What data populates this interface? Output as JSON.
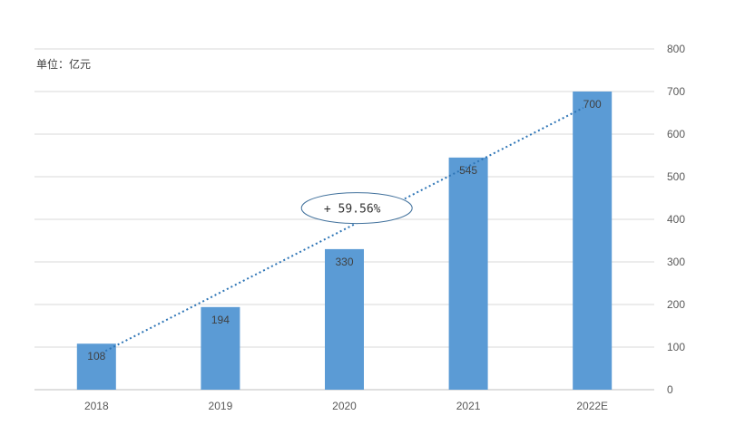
{
  "chart_data": {
    "type": "bar",
    "categories": [
      "2018",
      "2019",
      "2020",
      "2021",
      "2022E"
    ],
    "values": [
      108,
      194,
      330,
      545,
      700
    ],
    "data_labels": [
      "108",
      "194",
      "330",
      "545",
      "700"
    ],
    "unit_label": "单位：亿元",
    "ylim": [
      0,
      800
    ],
    "yticks": [
      0,
      100,
      200,
      300,
      400,
      500,
      600,
      700,
      800
    ],
    "y_axis_side": "right",
    "grid": true,
    "trendline": {
      "style": "dotted",
      "from_category": "2018",
      "to_category": "2022E"
    },
    "annotation": {
      "text": "+ 59.56%",
      "shape": "ellipse"
    },
    "bar_color": "#5B9BD5",
    "trend_color": "#2E75B6"
  }
}
